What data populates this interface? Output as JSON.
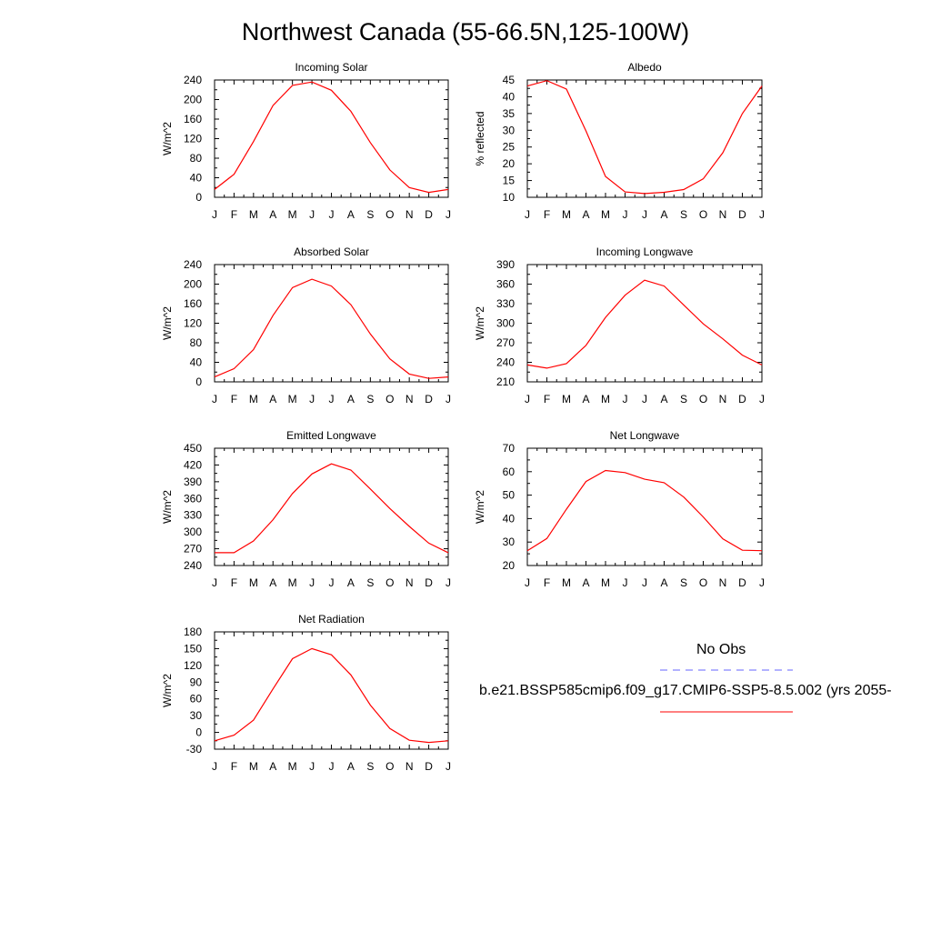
{
  "title": "Northwest Canada (55-66.5N,125-100W)",
  "months": [
    "J",
    "F",
    "M",
    "A",
    "M",
    "J",
    "J",
    "A",
    "S",
    "O",
    "N",
    "D",
    "J"
  ],
  "colors": {
    "model_line": "#ff0000",
    "obs_line": "#6666ff",
    "axis": "#000000"
  },
  "legend": {
    "obs_label": "No Obs",
    "model_label": "b.e21.BSSP585cmip6.f09_g17.CMIP6-SSP5-8.5.002 (yrs 2055-"
  },
  "chart_data": [
    {
      "type": "line",
      "title": "Incoming Solar",
      "ylabel": "W/m^2",
      "ylim": [
        0,
        240
      ],
      "yticks": [
        0,
        40,
        80,
        120,
        160,
        200,
        240
      ],
      "series": [
        {
          "values": [
            16,
            47,
            114,
            188,
            229,
            236,
            219,
            176,
            112,
            56,
            20,
            10,
            16
          ]
        }
      ]
    },
    {
      "type": "line",
      "title": "Albedo",
      "ylabel": "% reflected",
      "ylim": [
        10,
        45
      ],
      "yticks": [
        10,
        15,
        20,
        25,
        30,
        35,
        40,
        45
      ],
      "series": [
        {
          "values": [
            43.2,
            44.8,
            42.3,
            29.8,
            16.2,
            11.6,
            11.1,
            11.5,
            12.3,
            15.5,
            23.3,
            35.0,
            43.2
          ]
        }
      ]
    },
    {
      "type": "line",
      "title": "Absorbed Solar",
      "ylabel": "W/m^2",
      "ylim": [
        0,
        240
      ],
      "yticks": [
        0,
        40,
        80,
        120,
        160,
        200,
        240
      ],
      "series": [
        {
          "values": [
            10,
            27,
            66,
            136,
            193,
            210,
            196,
            158,
            98,
            47,
            16,
            7,
            10
          ]
        }
      ]
    },
    {
      "type": "line",
      "title": "Incoming Longwave",
      "ylabel": "W/m^2",
      "ylim": [
        210,
        390
      ],
      "yticks": [
        210,
        240,
        270,
        300,
        330,
        360,
        390
      ],
      "series": [
        {
          "values": [
            236,
            231,
            238,
            266,
            309,
            343,
            366,
            357,
            328,
            299,
            276,
            251,
            236
          ]
        }
      ]
    },
    {
      "type": "line",
      "title": "Emitted Longwave",
      "ylabel": "W/m^2",
      "ylim": [
        240,
        450
      ],
      "yticks": [
        240,
        270,
        300,
        330,
        360,
        390,
        420,
        450
      ],
      "series": [
        {
          "values": [
            263,
            263,
            284,
            322,
            369,
            404,
            422,
            411,
            377,
            342,
            310,
            280,
            263
          ]
        }
      ]
    },
    {
      "type": "line",
      "title": "Net Longwave",
      "ylabel": "W/m^2",
      "ylim": [
        20,
        70
      ],
      "yticks": [
        20,
        30,
        40,
        50,
        60,
        70
      ],
      "series": [
        {
          "values": [
            26.3,
            31.5,
            44.0,
            55.8,
            60.5,
            59.6,
            56.8,
            55.3,
            49.2,
            40.7,
            31.4,
            26.5,
            26.3
          ]
        }
      ]
    },
    {
      "type": "line",
      "title": "Net Radiation",
      "ylabel": "W/m^2",
      "ylim": [
        -30,
        180
      ],
      "yticks": [
        -30,
        0,
        30,
        60,
        90,
        120,
        150,
        180
      ],
      "series": [
        {
          "values": [
            -15,
            -5,
            22,
            78,
            132,
            150,
            139,
            103,
            49,
            7,
            -14,
            -18,
            -15
          ]
        }
      ]
    }
  ]
}
